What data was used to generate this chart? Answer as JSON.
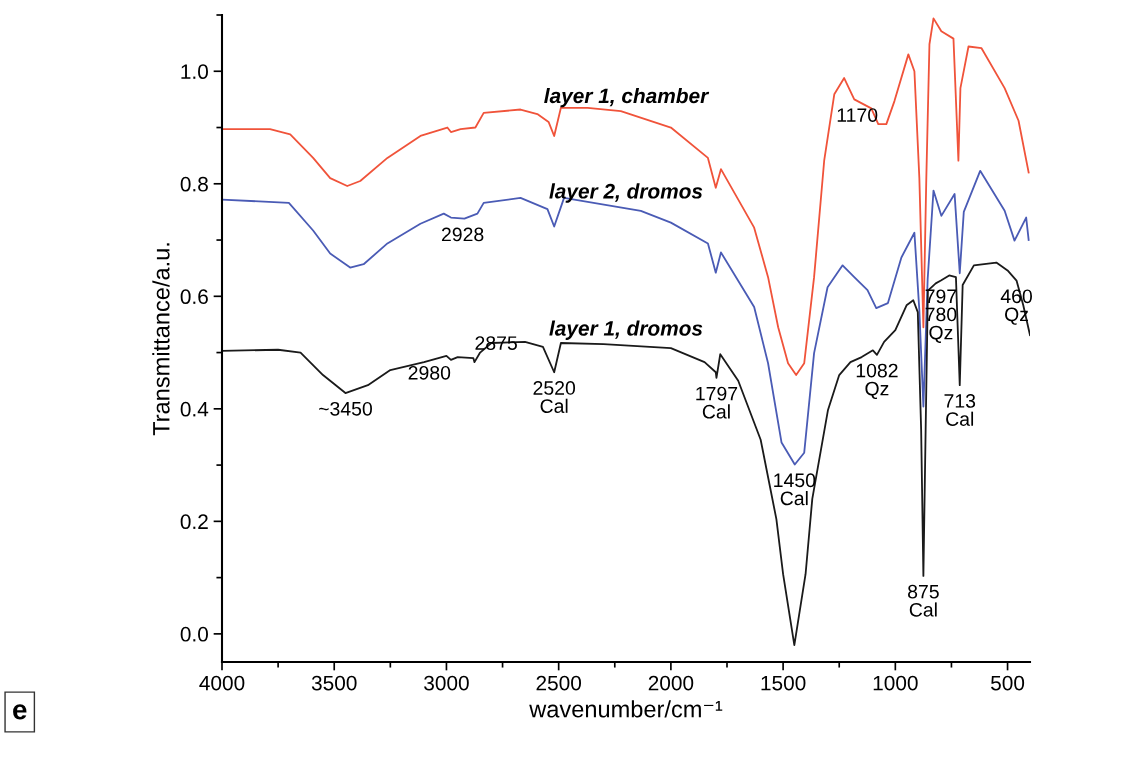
{
  "chart_data": {
    "type": "line",
    "xlabel": "wavenumber/cm⁻¹",
    "ylabel": "Transmittance/a.u.",
    "xlim": [
      4000,
      400
    ],
    "ylim": [
      -0.05,
      1.1
    ],
    "xticks": [
      4000,
      3500,
      3000,
      2500,
      2000,
      1500,
      1000,
      500
    ],
    "yticks": [
      {
        "value": 0,
        "label": "0.0"
      },
      0.2,
      0.4,
      0.6,
      0.8,
      {
        "value": 1,
        "label": "1.0"
      }
    ],
    "grid": false,
    "legend": false,
    "marker": "none",
    "line_style": "solid",
    "series": [
      {
        "name": "layer 1, chamber",
        "color": "#f0533a",
        "x": [
          4000,
          3786,
          3696,
          3594,
          3518,
          3442,
          3384,
          3263,
          3116,
          2996,
          2980,
          2937,
          2871,
          2834,
          2670,
          2595,
          2545,
          2520,
          2490,
          2371,
          2223,
          2000,
          1835,
          1800,
          1777,
          1629,
          1567,
          1522,
          1478,
          1442,
          1406,
          1362,
          1317,
          1272,
          1228,
          1183,
          1107,
          1076,
          1040,
          1004,
          942,
          915,
          893,
          875,
          862,
          848,
          830,
          795,
          741,
          719,
          710,
          674,
          616,
          513,
          451,
          406
        ],
        "values": [
          0.897,
          0.897,
          0.888,
          0.846,
          0.81,
          0.796,
          0.805,
          0.846,
          0.885,
          0.9,
          0.892,
          0.897,
          0.9,
          0.926,
          0.932,
          0.924,
          0.91,
          0.885,
          0.935,
          0.935,
          0.929,
          0.9,
          0.846,
          0.793,
          0.826,
          0.722,
          0.634,
          0.545,
          0.481,
          0.46,
          0.481,
          0.634,
          0.841,
          0.959,
          0.988,
          0.95,
          0.934,
          0.906,
          0.906,
          0.947,
          1.03,
          1.0,
          0.81,
          0.545,
          0.81,
          1.048,
          1.094,
          1.071,
          1.058,
          0.841,
          0.97,
          1.044,
          1.041,
          0.97,
          0.912,
          0.82
        ]
      },
      {
        "name": "layer 2, dromos",
        "color": "#4a5bb5",
        "x": [
          4000,
          3702,
          3594,
          3518,
          3429,
          3369,
          3263,
          3116,
          3012,
          2980,
          2920,
          2862,
          2834,
          2670,
          2550,
          2520,
          2476,
          2134,
          2000,
          1835,
          1800,
          1777,
          1629,
          1567,
          1507,
          1448,
          1406,
          1362,
          1302,
          1235,
          1183,
          1124,
          1085,
          1033,
          973,
          915,
          893,
          875,
          856,
          830,
          795,
          736,
          713,
          695,
          622,
          513,
          469,
          417,
          406
        ],
        "values": [
          0.772,
          0.766,
          0.717,
          0.676,
          0.651,
          0.657,
          0.694,
          0.729,
          0.747,
          0.74,
          0.738,
          0.747,
          0.766,
          0.775,
          0.755,
          0.724,
          0.775,
          0.752,
          0.731,
          0.694,
          0.642,
          0.678,
          0.581,
          0.481,
          0.34,
          0.301,
          0.322,
          0.499,
          0.616,
          0.655,
          0.634,
          0.611,
          0.579,
          0.588,
          0.669,
          0.713,
          0.575,
          0.404,
          0.63,
          0.788,
          0.743,
          0.782,
          0.641,
          0.75,
          0.823,
          0.752,
          0.699,
          0.74,
          0.7
        ]
      },
      {
        "name": "layer 1, dromos",
        "color": "#1a1a1a",
        "x": [
          4000,
          3750,
          3650,
          3550,
          3450,
          3350,
          3250,
          3100,
          3000,
          2980,
          2950,
          2880,
          2875,
          2850,
          2800,
          2650,
          2570,
          2520,
          2490,
          2300,
          2000,
          1850,
          1800,
          1797,
          1780,
          1700,
          1600,
          1530,
          1500,
          1450,
          1400,
          1370,
          1300,
          1250,
          1200,
          1150,
          1100,
          1082,
          1050,
          1000,
          950,
          920,
          900,
          885,
          875,
          865,
          855,
          820,
          797,
          760,
          730,
          713,
          700,
          650,
          550,
          500,
          460,
          430,
          400
        ],
        "values": [
          0.503,
          0.505,
          0.5,
          0.46,
          0.428,
          0.442,
          0.469,
          0.483,
          0.494,
          0.487,
          0.492,
          0.49,
          0.483,
          0.5,
          0.517,
          0.519,
          0.51,
          0.465,
          0.517,
          0.515,
          0.508,
          0.483,
          0.465,
          0.455,
          0.497,
          0.45,
          0.345,
          0.204,
          0.106,
          -0.02,
          0.106,
          0.24,
          0.398,
          0.46,
          0.483,
          0.492,
          0.504,
          0.496,
          0.519,
          0.54,
          0.584,
          0.593,
          0.572,
          0.363,
          0.103,
          0.363,
          0.61,
          0.623,
          0.628,
          0.637,
          0.634,
          0.442,
          0.62,
          0.655,
          0.66,
          0.646,
          0.628,
          0.584,
          0.531
        ]
      }
    ],
    "annotations": [
      {
        "text": "~3450",
        "x": 3450,
        "y": 0.428
      },
      {
        "text": "2980",
        "x": 2980,
        "y": 0.487
      },
      {
        "text": "2875",
        "x": 2875,
        "y": 0.483
      },
      {
        "text": "2520\nCal",
        "x": 2520,
        "y": 0.465
      },
      {
        "text": "1797\nCal",
        "x": 1797,
        "y": 0.455
      },
      {
        "text": "1450\nCal",
        "x": 1450,
        "y": 0.301
      },
      {
        "text": "1082\nQz",
        "x": 1082,
        "y": 0.496
      },
      {
        "text": "875\nCal",
        "x": 875,
        "y": 0.103
      },
      {
        "text": "797\n780\nQz",
        "x": 797,
        "y": 0.628
      },
      {
        "text": "713\nCal",
        "x": 713,
        "y": 0.442
      },
      {
        "text": "460\nQz",
        "x": 460,
        "y": 0.628
      },
      {
        "text": "2928",
        "x": 2928,
        "y": 0.738
      },
      {
        "text": "1170",
        "x": 1170,
        "y": 0.95
      },
      "e"
    ]
  }
}
